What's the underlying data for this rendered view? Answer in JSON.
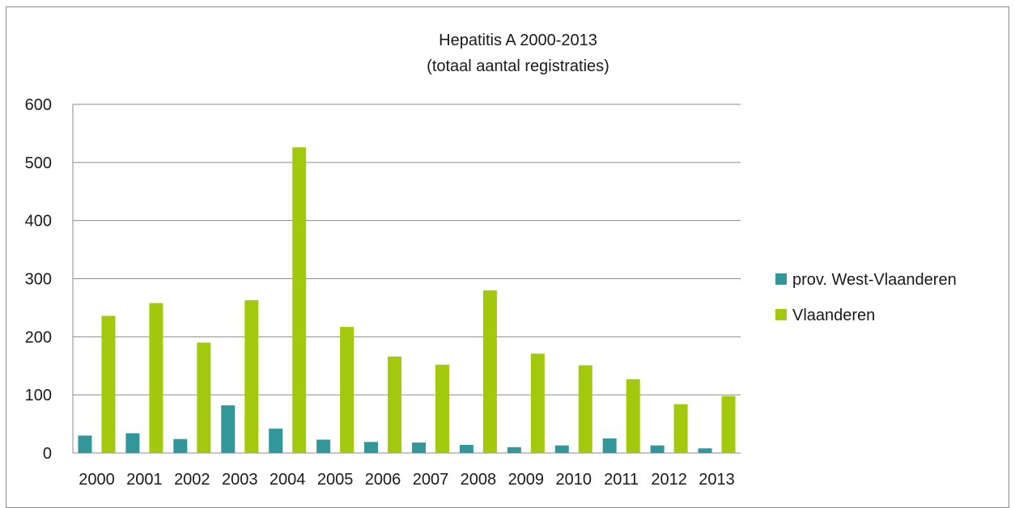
{
  "chart_data": {
    "type": "bar",
    "title": [
      "Hepatitis A  2000-2013",
      "(totaal aantal registraties)"
    ],
    "xlabel": "",
    "ylabel": "",
    "ylim": [
      0,
      600
    ],
    "y_ticks": [
      0,
      100,
      200,
      300,
      400,
      500,
      600
    ],
    "grid": true,
    "legend_position": "right",
    "categories": [
      "2000",
      "2001",
      "2002",
      "2003",
      "2004",
      "2005",
      "2006",
      "2007",
      "2008",
      "2009",
      "2010",
      "2011",
      "2012",
      "2013"
    ],
    "series": [
      {
        "name": "prov. West-Vlaanderen",
        "color": "#31979a",
        "values": [
          30,
          34,
          24,
          82,
          42,
          23,
          19,
          18,
          14,
          10,
          13,
          25,
          13,
          8
        ]
      },
      {
        "name": "Vlaanderen",
        "color": "#a3c90c",
        "values": [
          236,
          258,
          190,
          263,
          526,
          217,
          166,
          152,
          280,
          171,
          151,
          127,
          84,
          98
        ]
      }
    ]
  }
}
